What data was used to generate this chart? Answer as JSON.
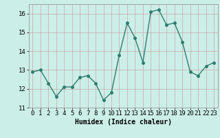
{
  "x": [
    0,
    1,
    2,
    3,
    4,
    5,
    6,
    7,
    8,
    9,
    10,
    11,
    12,
    13,
    14,
    15,
    16,
    17,
    18,
    19,
    20,
    21,
    22,
    23
  ],
  "y": [
    12.9,
    13.0,
    12.3,
    11.6,
    12.1,
    12.1,
    12.6,
    12.7,
    12.3,
    11.4,
    11.8,
    13.8,
    15.5,
    14.7,
    13.4,
    16.1,
    16.2,
    15.4,
    15.5,
    14.5,
    12.9,
    12.7,
    13.2,
    13.4
  ],
  "line_color": "#2e7d6e",
  "marker": "o",
  "markersize": 2.5,
  "linewidth": 1.0,
  "bg_color": "#cceee8",
  "grid_color_h": "#c8a8a8",
  "grid_color_v": "#c8a8a8",
  "xlabel": "Humidex (Indice chaleur)",
  "xlabel_fontsize": 7,
  "tick_fontsize": 6.5,
  "ylim": [
    11,
    16.5
  ],
  "xlim": [
    -0.5,
    23.5
  ],
  "yticks": [
    11,
    12,
    13,
    14,
    15,
    16
  ],
  "xticks": [
    0,
    1,
    2,
    3,
    4,
    5,
    6,
    7,
    8,
    9,
    10,
    11,
    12,
    13,
    14,
    15,
    16,
    17,
    18,
    19,
    20,
    21,
    22,
    23
  ]
}
